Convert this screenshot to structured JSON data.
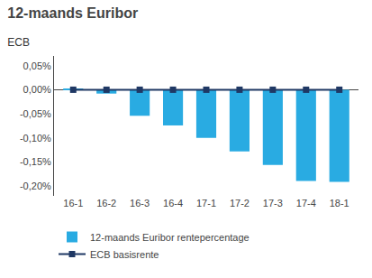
{
  "chart_data": {
    "type": "bar",
    "title": "12-maands Euribor",
    "subtitle": "ECB",
    "categories": [
      "16-1",
      "16-2",
      "16-3",
      "16-4",
      "17-1",
      "17-2",
      "17-3",
      "17-4",
      "18-1"
    ],
    "series": [
      {
        "name": "12-maands Euribor rentepercentage",
        "type": "bar",
        "color": "#29ABE2",
        "values": [
          0.001,
          -0.008,
          -0.054,
          -0.074,
          -0.1,
          -0.128,
          -0.156,
          -0.189,
          -0.191
        ]
      },
      {
        "name": "ECB basisrente",
        "type": "line",
        "color": "#1F3864",
        "marker": "square",
        "values": [
          0.0,
          0.0,
          0.0,
          0.0,
          0.0,
          0.0,
          0.0,
          0.0,
          0.0
        ]
      }
    ],
    "ylim": [
      -0.22,
      0.07
    ],
    "yticks": [
      {
        "value": 0.05,
        "label": "0,05%"
      },
      {
        "value": 0.0,
        "label": "0,00%"
      },
      {
        "value": -0.05,
        "label": "-0,05%"
      },
      {
        "value": -0.1,
        "label": "-0,10%"
      },
      {
        "value": -0.15,
        "label": "-0,15%"
      },
      {
        "value": -0.2,
        "label": "-0,20%"
      }
    ],
    "grid": false,
    "legend": "lower left",
    "background_color": "#FFFFFF"
  }
}
